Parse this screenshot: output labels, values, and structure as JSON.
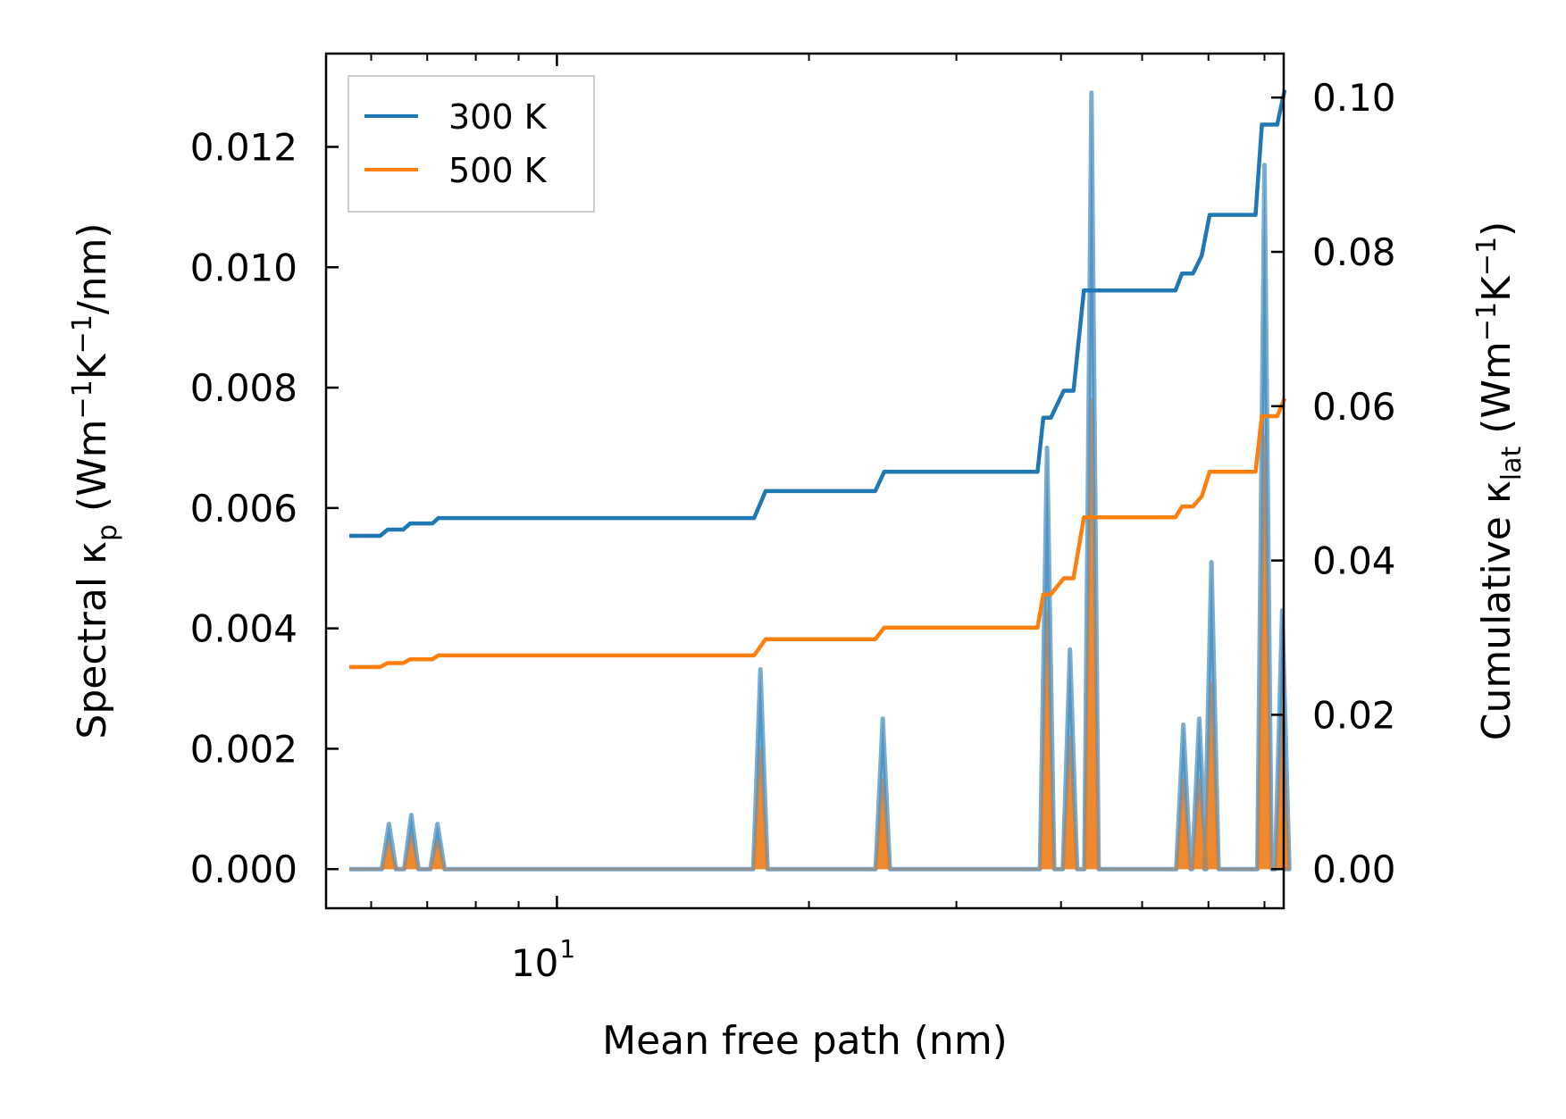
{
  "chart_data": {
    "type": "line",
    "xscale": "log",
    "xlim": [
      5.3,
      73.8
    ],
    "xlabel": "Mean free path (nm)",
    "xticks": [
      {
        "value": 10,
        "base": "10",
        "exp": "1"
      }
    ],
    "ylabel_left": {
      "pre": "Spectral κ",
      "sub": "p",
      "post": " (Wm",
      "sup1": "−1",
      "mid": "K",
      "sup2": "−1",
      "end": "/nm)"
    },
    "ylabel_right": {
      "pre": "Cumulative κ",
      "sub": "lat",
      "post": " (Wm",
      "sup1": "−1",
      "mid": "K",
      "sup2": "−1",
      "end": ")"
    },
    "ylim_left": [
      -0.00065,
      0.01355
    ],
    "ylim_right": [
      -0.00507,
      0.1057
    ],
    "yticks_left": [
      "0.000",
      "0.002",
      "0.004",
      "0.006",
      "0.008",
      "0.010",
      "0.012"
    ],
    "yticks_right": [
      "0.00",
      "0.02",
      "0.04",
      "0.06",
      "0.08",
      "0.10"
    ],
    "legend": [
      {
        "label": "300 K",
        "color": "#1f77b4"
      },
      {
        "label": "500 K",
        "color": "#ff7f0e"
      }
    ],
    "legend_position": "top-left",
    "spectral_peaks": [
      {
        "x": 6.3,
        "k300": 0.00075,
        "k500": 0.00048
      },
      {
        "x": 6.7,
        "k300": 0.0009,
        "k500": 0.00057
      },
      {
        "x": 7.2,
        "k300": 0.00075,
        "k500": 0.00048
      },
      {
        "x": 17.5,
        "k300": 0.00332,
        "k500": 0.002
      },
      {
        "x": 24.5,
        "k300": 0.0025,
        "k500": 0.0015
      },
      {
        "x": 38.5,
        "k300": 0.007,
        "k500": 0.0043
      },
      {
        "x": 41.0,
        "k300": 0.00365,
        "k500": 0.0022
      },
      {
        "x": 43.5,
        "k300": 0.0129,
        "k500": 0.0078
      },
      {
        "x": 56.0,
        "k300": 0.0024,
        "k500": 0.0015
      },
      {
        "x": 58.5,
        "k300": 0.0025,
        "k500": 0.0015
      },
      {
        "x": 60.5,
        "k300": 0.0051,
        "k500": 0.0031
      },
      {
        "x": 70.0,
        "k300": 0.0117,
        "k500": 0.0072
      },
      {
        "x": 73.5,
        "k300": 0.0043,
        "k500": 0.0026
      }
    ],
    "cumulative": {
      "300 K": {
        "x": [
          5.65,
          6.15,
          6.28,
          6.55,
          6.68,
          7.1,
          7.22,
          17.2,
          17.75,
          24.0,
          24.6,
          37.5,
          38.1,
          38.9,
          40.3,
          41.4,
          42.6,
          43.7,
          54.8,
          55.8,
          57.5,
          58.9,
          60.2,
          61.2,
          68.3,
          69.5,
          70.5,
          72.5,
          74.0
        ],
        "y": [
          0.0432,
          0.0432,
          0.044,
          0.044,
          0.0448,
          0.0448,
          0.0455,
          0.0455,
          0.049,
          0.049,
          0.0515,
          0.0515,
          0.0585,
          0.0585,
          0.062,
          0.062,
          0.075,
          0.075,
          0.075,
          0.0772,
          0.0772,
          0.0795,
          0.0848,
          0.0848,
          0.0848,
          0.0965,
          0.0965,
          0.0965,
          0.101
        ]
      },
      "500 K": {
        "x": [
          5.65,
          6.15,
          6.28,
          6.55,
          6.68,
          7.1,
          7.22,
          17.2,
          17.75,
          24.0,
          24.6,
          37.5,
          38.1,
          38.9,
          40.3,
          41.4,
          42.6,
          43.7,
          54.8,
          55.8,
          57.5,
          58.9,
          60.2,
          61.2,
          68.3,
          69.5,
          70.5,
          72.5,
          74.0
        ],
        "y": [
          0.0262,
          0.0262,
          0.0267,
          0.0267,
          0.0272,
          0.0272,
          0.0277,
          0.0277,
          0.0298,
          0.0298,
          0.0313,
          0.0313,
          0.0356,
          0.0356,
          0.0377,
          0.0377,
          0.0456,
          0.0456,
          0.0456,
          0.047,
          0.047,
          0.0483,
          0.0515,
          0.0515,
          0.0515,
          0.0587,
          0.0587,
          0.0587,
          0.061
        ]
      }
    }
  }
}
